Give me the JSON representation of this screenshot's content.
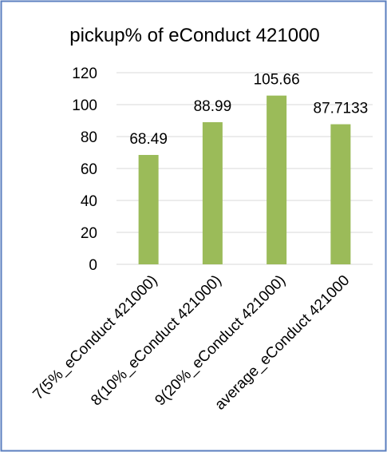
{
  "chart_data": {
    "type": "bar",
    "title": "pickup% of eConduct 421000",
    "categories": [
      "7(5%_eConduct 421000)",
      "8(10%_eConduct 421000)",
      "9(20%_eConduct 421000)",
      "average_eConduct 421000"
    ],
    "values": [
      68.49,
      88.99,
      105.66,
      87.7133
    ],
    "data_labels": [
      "68.49",
      "88.99",
      "105.66",
      "87.7133"
    ],
    "y_ticks": [
      "0",
      "20",
      "40",
      "60",
      "80",
      "100",
      "120"
    ],
    "ylim": [
      0,
      120
    ],
    "grid": true,
    "legend": "none",
    "colors": {
      "bar": "#9BBB59",
      "grid": "#D9D9D9",
      "border": "#5B7FBF"
    }
  }
}
